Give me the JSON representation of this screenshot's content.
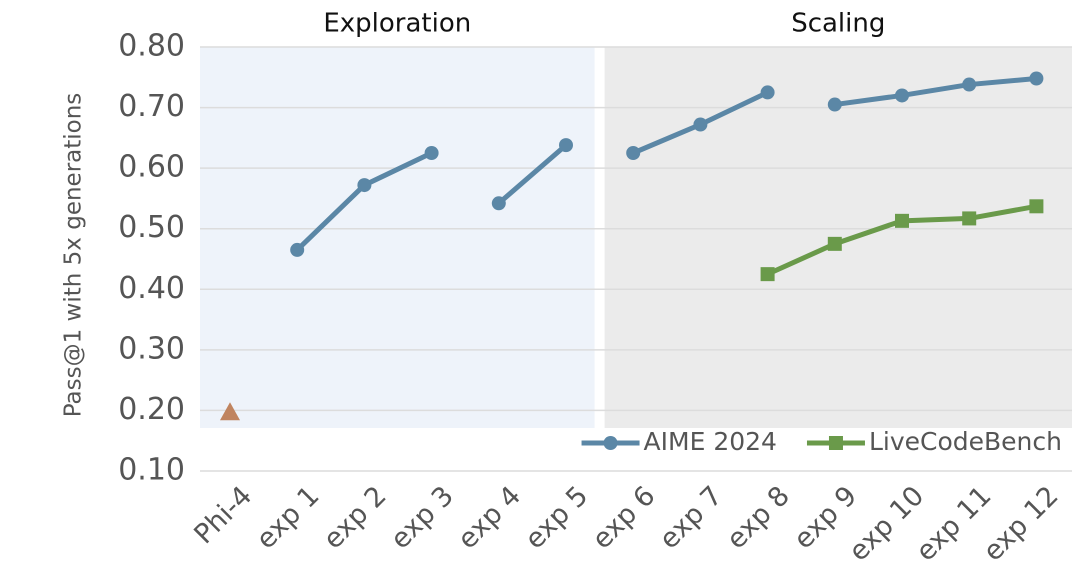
{
  "chart_data": {
    "type": "line",
    "y_label": "Pass@1 with 5x generations",
    "categories": [
      "Phi-4",
      "exp 1",
      "exp 2",
      "exp 3",
      "exp 4",
      "exp 5",
      "exp 6",
      "exp 7",
      "exp 8",
      "exp 9",
      "exp 10",
      "exp 11",
      "exp 12"
    ],
    "regions": [
      {
        "label": "Exploration",
        "from": 0,
        "to": 5,
        "color": "#eef3fa"
      },
      {
        "label": "Scaling",
        "from": 6,
        "to": 12,
        "color": "#ebebeb"
      }
    ],
    "series": [
      {
        "name": "AIME 2024",
        "color": "#5b87a6",
        "marker": "circle",
        "values": [
          null,
          0.465,
          0.572,
          0.625,
          null,
          null,
          null,
          null,
          null,
          null,
          null,
          null,
          null
        ]
      },
      {
        "color": "#5b87a6",
        "marker": "circle",
        "values": [
          null,
          null,
          null,
          null,
          0.542,
          0.638,
          null,
          null,
          null,
          null,
          null,
          null,
          null
        ]
      },
      {
        "color": "#5b87a6",
        "marker": "circle",
        "values": [
          null,
          null,
          null,
          null,
          null,
          null,
          0.625,
          0.672,
          0.725,
          null,
          null,
          null,
          null
        ]
      },
      {
        "color": "#5b87a6",
        "marker": "circle",
        "values": [
          null,
          null,
          null,
          null,
          null,
          null,
          null,
          null,
          null,
          0.705,
          0.72,
          0.738,
          0.748
        ]
      },
      {
        "name": "LiveCodeBench",
        "color": "#6a9a4a",
        "marker": "square",
        "values": [
          null,
          null,
          null,
          null,
          null,
          null,
          null,
          null,
          0.425,
          0.475,
          0.513,
          0.517,
          0.537
        ]
      },
      {
        "color": "#c0845f",
        "marker": "triangle",
        "values": [
          0.197,
          null,
          null,
          null,
          null,
          null,
          null,
          null,
          null,
          null,
          null,
          null,
          null
        ]
      }
    ],
    "ylim": [
      0.1,
      0.8
    ],
    "yticks": [
      {
        "value": 0.1,
        "label": "0.10"
      },
      {
        "value": 0.2,
        "label": "0.20"
      },
      {
        "value": 0.3,
        "label": "0.30"
      },
      {
        "value": 0.4,
        "label": "0.40"
      },
      {
        "value": 0.5,
        "label": "0.50"
      },
      {
        "value": 0.6,
        "label": "0.60"
      },
      {
        "value": 0.7,
        "label": "0.70"
      },
      {
        "value": 0.8,
        "label": "0.80"
      }
    ],
    "grid": true,
    "legend": "lower right"
  }
}
